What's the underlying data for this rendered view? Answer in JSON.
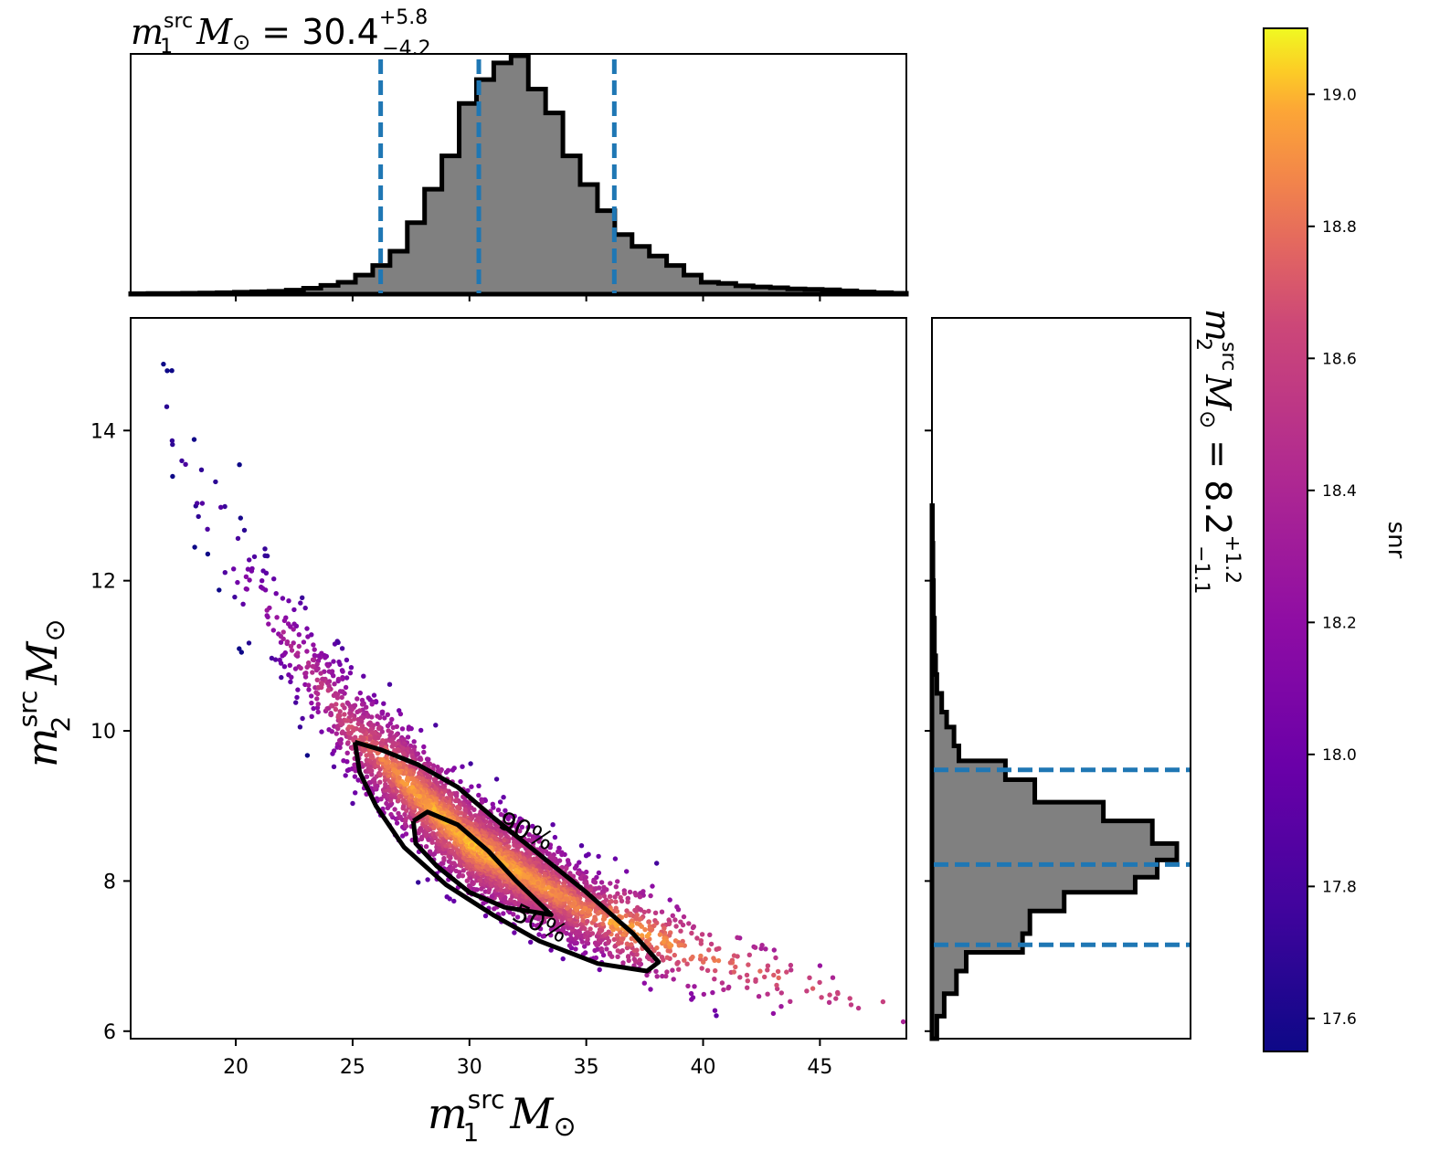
{
  "chart_data": [
    {
      "panel": "top-marginal",
      "type": "histogram",
      "title_text": {
        "symbol": "m",
        "sup": "src",
        "sub": "1",
        "unit": "M",
        "unit_sub": "⊙",
        "eq": " = 30.4",
        "plus": "+5.8",
        "minus": "−4.2"
      },
      "median": 30.4,
      "lower_bound": 26.2,
      "upper_bound": 36.2,
      "xlim": [
        15.5,
        48.7
      ],
      "bin_edges": [
        15.5,
        16.24,
        16.98,
        17.72,
        18.46,
        19.2,
        19.94,
        20.68,
        21.42,
        22.16,
        22.9,
        23.64,
        24.38,
        25.12,
        25.86,
        26.6,
        27.34,
        28.08,
        28.82,
        29.56,
        30.3,
        31.04,
        31.78,
        32.52,
        33.26,
        34.0,
        34.74,
        35.48,
        36.22,
        36.96,
        37.7,
        38.44,
        39.18,
        39.92,
        40.66,
        41.4,
        42.14,
        42.88,
        43.62,
        44.36,
        45.1,
        45.84,
        46.58,
        47.32,
        48.06,
        48.7
      ],
      "heights": [
        0.002,
        0.003,
        0.003,
        0.004,
        0.005,
        0.006,
        0.008,
        0.01,
        0.012,
        0.017,
        0.025,
        0.037,
        0.05,
        0.08,
        0.12,
        0.18,
        0.3,
        0.44,
        0.58,
        0.8,
        0.9,
        0.97,
        1.0,
        0.86,
        0.76,
        0.58,
        0.46,
        0.35,
        0.25,
        0.2,
        0.16,
        0.12,
        0.08,
        0.05,
        0.045,
        0.035,
        0.03,
        0.027,
        0.022,
        0.02,
        0.018,
        0.014,
        0.009,
        0.006,
        0.004
      ],
      "ticks": [
        20,
        25,
        30,
        35,
        40,
        45
      ]
    },
    {
      "panel": "main-scatter",
      "type": "scatter",
      "xlabel": {
        "symbol": "m",
        "sup": "src",
        "sub": "1",
        "unit": "M",
        "unit_sub": "⊙"
      },
      "ylabel": {
        "symbol": "m",
        "sup": "src",
        "sub": "2",
        "unit": "M",
        "unit_sub": "⊙"
      },
      "xlim": [
        15.5,
        48.7
      ],
      "ylim": [
        5.9,
        15.5
      ],
      "xticks": [
        "20",
        "25",
        "30",
        "35",
        "40",
        "45"
      ],
      "yticks": [
        "6",
        "8",
        "10",
        "12",
        "14"
      ],
      "ridge_m1": [
        16.5,
        20,
        25,
        30,
        35,
        40,
        45,
        48.7
      ],
      "ridge_m2": [
        14.5,
        12.2,
        10.0,
        8.5,
        7.6,
        7.0,
        6.55,
        6.25
      ],
      "contours": [
        {
          "label": "90%",
          "label_x": 32.4,
          "label_y": 8.65,
          "path": [
            [
              25.1,
              9.85
            ],
            [
              26.2,
              9.75
            ],
            [
              27.8,
              9.55
            ],
            [
              29.5,
              9.25
            ],
            [
              31.0,
              8.85
            ],
            [
              33.0,
              8.35
            ],
            [
              35.0,
              7.85
            ],
            [
              37.0,
              7.3
            ],
            [
              38.1,
              6.92
            ],
            [
              37.6,
              6.8
            ],
            [
              35.5,
              6.9
            ],
            [
              33.0,
              7.2
            ],
            [
              31.0,
              7.55
            ],
            [
              29.0,
              7.95
            ],
            [
              27.2,
              8.45
            ],
            [
              26.0,
              9.0
            ],
            [
              25.3,
              9.45
            ],
            [
              25.1,
              9.85
            ]
          ]
        },
        {
          "label": "50%",
          "label_x": 33.0,
          "label_y": 7.42,
          "path": [
            [
              27.6,
              8.8
            ],
            [
              28.2,
              8.92
            ],
            [
              29.5,
              8.75
            ],
            [
              30.8,
              8.4
            ],
            [
              32.0,
              8.0
            ],
            [
              33.5,
              7.55
            ],
            [
              31.5,
              7.65
            ],
            [
              30.0,
              7.85
            ],
            [
              28.6,
              8.2
            ],
            [
              27.7,
              8.5
            ],
            [
              27.6,
              8.8
            ]
          ]
        }
      ],
      "colormap": "plasma",
      "color_range": [
        17.55,
        19.1
      ]
    },
    {
      "panel": "right-marginal",
      "type": "histogram",
      "orientation": "horizontal",
      "title_text": {
        "symbol": "m",
        "sup": "src",
        "sub": "2",
        "unit": "M",
        "unit_sub": "⊙",
        "eq": " = 8.2",
        "plus": "+1.2",
        "minus": "−1.1"
      },
      "median": 8.22,
      "lower_bound": 7.15,
      "upper_bound": 9.48,
      "ylim": [
        5.9,
        15.5
      ],
      "bin_edges": [
        5.9,
        6.2,
        6.5,
        6.8,
        7.05,
        7.3,
        7.6,
        7.85,
        8.05,
        8.28,
        8.5,
        8.8,
        9.05,
        9.35,
        9.6,
        9.8,
        10.05,
        10.25,
        10.5,
        10.75,
        11.0,
        11.5,
        12.0,
        12.5,
        13.0
      ],
      "heights": [
        0.02,
        0.05,
        0.1,
        0.14,
        0.37,
        0.4,
        0.54,
        0.83,
        0.92,
        1.0,
        0.9,
        0.7,
        0.42,
        0.3,
        0.11,
        0.09,
        0.06,
        0.04,
        0.02,
        0.015,
        0.01,
        0.006,
        0.004,
        0.002
      ],
      "ticks": [
        6,
        8,
        10,
        12,
        14
      ]
    },
    {
      "panel": "colorbar",
      "type": "colorbar",
      "label": "snr",
      "range": [
        17.55,
        19.1
      ],
      "ticks": [
        "17.6",
        "17.8",
        "18.0",
        "18.2",
        "18.4",
        "18.6",
        "18.8",
        "19.0"
      ]
    }
  ]
}
